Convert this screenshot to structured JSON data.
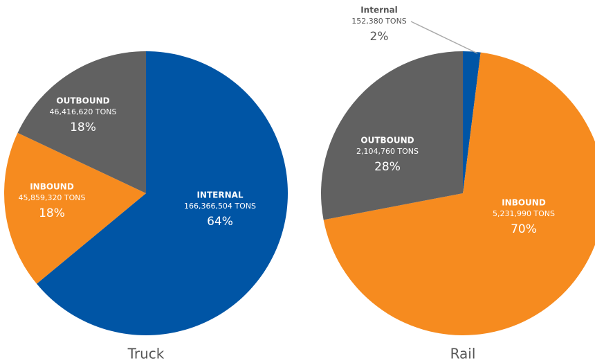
{
  "chart_data": [
    {
      "type": "pie",
      "title": "Truck",
      "categories": [
        "INTERNAL",
        "INBOUND",
        "OUTBOUND"
      ],
      "values": [
        64,
        18,
        18
      ],
      "value_labels": [
        "64%",
        "18%",
        "18%"
      ],
      "details": [
        "166,366,504 TONS",
        "45,859,320 TONS",
        "46,416,620 TONS"
      ],
      "colors": [
        "#0055a5",
        "#f68b1f",
        "#616161"
      ]
    },
    {
      "type": "pie",
      "title": "Rail",
      "categories": [
        "Internal",
        "INBOUND",
        "OUTBOUND"
      ],
      "values": [
        2,
        70,
        28
      ],
      "value_labels": [
        "2%",
        "70%",
        "28%"
      ],
      "details": [
        "152,380 TONS",
        "5,231,990 TONS",
        "2,104,760 TONS"
      ],
      "colors": [
        "#0055a5",
        "#f68b1f",
        "#616161"
      ]
    }
  ]
}
